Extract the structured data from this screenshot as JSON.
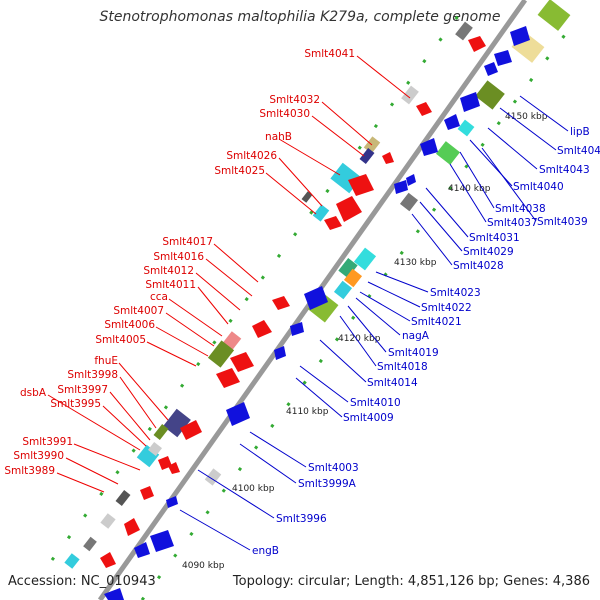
{
  "title": "Stenotrophomonas maltophilia K279a, complete genome",
  "accession": "Accession: NC_010943",
  "summary": "Topology: circular; Length: 4,851,126 bp; Genes: 4,386",
  "colors": {
    "forward_label": "#dd0000",
    "reverse_label": "#0000cc",
    "forward_gene": "#ee1111",
    "reverse_gene": "#1111dd",
    "backbone": "#999999",
    "tick": "#33aa33"
  },
  "ticks": [
    "4090 kbp",
    "4100 kbp",
    "4110 kbp",
    "4120 kbp",
    "4130 kbp",
    "4140 kbp",
    "4150 kbp"
  ],
  "forward_labels": [
    "Smlt4041",
    "Smlt4032",
    "Smlt4030",
    "nahB",
    "Smlt4026",
    "Smlt4025",
    "Smlt4017",
    "Smlt4016",
    "Smlt4012",
    "Smlt4011",
    "cca",
    "Smlt4007",
    "Smlt4006",
    "Smlt4005",
    "fhuE",
    "Smlt3998",
    "Smlt3997",
    "dsbA",
    "Smlt3995",
    "Smlt3991",
    "Smlt3990",
    "Smlt3989"
  ],
  "reverse_labels": [
    "lipB",
    "Smlt4045",
    "Smlt4043",
    "Smlt4040",
    "Smlt4038",
    "Smlt4037",
    "Smlt4039",
    "Smlt4031",
    "Smlt4029",
    "Smlt4028",
    "Smlt4023",
    "Smlt4022",
    "Smlt4021",
    "nagA",
    "Smlt4019",
    "Smlt4018",
    "Smlt4014",
    "Smlt4010",
    "Smlt4009",
    "Smlt4003",
    "Smlt3999A",
    "Smlt3996",
    "engB"
  ]
}
